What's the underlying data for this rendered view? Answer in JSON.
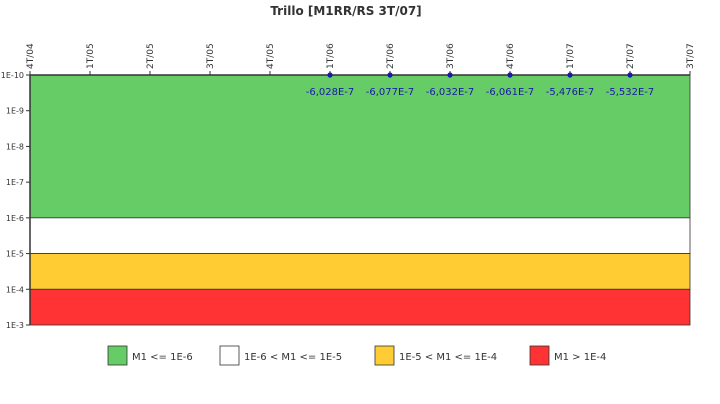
{
  "chart_data": {
    "type": "line",
    "title": "Trillo [M1RR/RS 3T/07]",
    "xlabel": "",
    "ylabel": "",
    "y_scale": "log-inverted",
    "x_categories": [
      "4T/04",
      "1T/05",
      "2T/05",
      "3T/05",
      "4T/05",
      "1T/06",
      "2T/06",
      "3T/06",
      "4T/06",
      "1T/07",
      "2T/07",
      "3T/07"
    ],
    "y_ticks": [
      "1E-10",
      "1E-9",
      "1E-8",
      "1E-7",
      "1E-6",
      "1E-5",
      "1E-4",
      "1E-3"
    ],
    "bands": [
      {
        "name": "M1 <= 1E-6",
        "from_exp": -10,
        "to_exp": -6,
        "color": "#66cc66"
      },
      {
        "name": "1E-6 < M1 <= 1E-5",
        "from_exp": -6,
        "to_exp": -5,
        "color": "#ffffff"
      },
      {
        "name": "1E-5 < M1 <= 1E-4",
        "from_exp": -5,
        "to_exp": -4,
        "color": "#ffcc33"
      },
      {
        "name": "M1 > 1E-4",
        "from_exp": -4,
        "to_exp": -3,
        "color": "#ff3333"
      }
    ],
    "series": [
      {
        "color": "#1a1aa8",
        "points": [
          {
            "x": "1T/06",
            "label": "-6,028E-7"
          },
          {
            "x": "2T/06",
            "label": "-6,077E-7"
          },
          {
            "x": "3T/06",
            "label": "-6,032E-7"
          },
          {
            "x": "4T/06",
            "label": "-6,061E-7"
          },
          {
            "x": "1T/07",
            "label": "-5,476E-7"
          },
          {
            "x": "2T/07",
            "label": "-5,532E-7"
          }
        ]
      }
    ],
    "legend_position": "bottom"
  }
}
